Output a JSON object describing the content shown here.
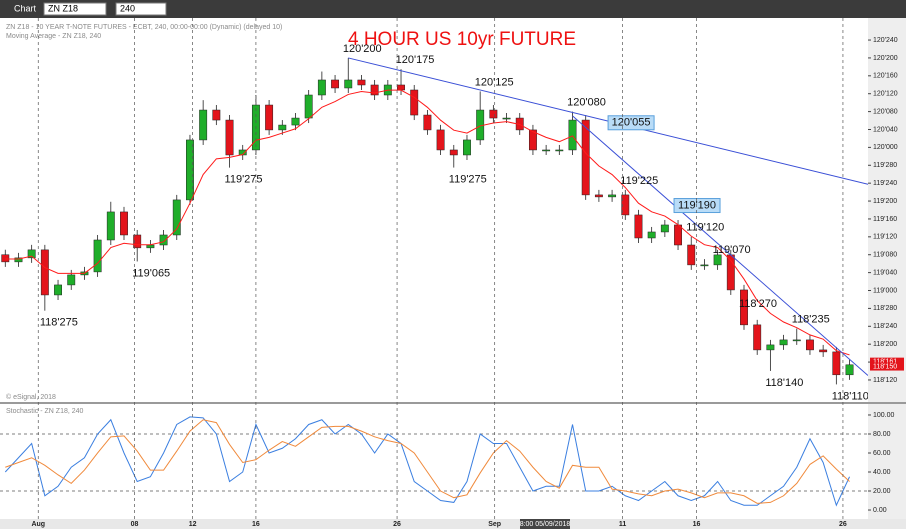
{
  "toolbar": {
    "title": "Chart",
    "symbol": "ZN Z18",
    "interval": "240"
  },
  "chart_data": [
    {
      "type": "candlestick",
      "title": "4 HOUR US 10yr FUTURE",
      "legend_lines": [
        "ZN Z18 - 10 YEAR T-NOTE FUTURES - ECBT, 240, 00:00-00:00 (Dynamic) (delayed 10)",
        "Moving Average - ZN Z18, 240"
      ],
      "watermark": "© eSignal, 2018",
      "cursor_date": "8:00 05/09/2018",
      "xlim": [
        -0.4,
        65.4
      ],
      "xticks": [
        {
          "value": 2.5,
          "label": "Aug"
        },
        {
          "value": 9.8,
          "label": "08"
        },
        {
          "value": 14.2,
          "label": "12"
        },
        {
          "value": 19.0,
          "label": "16"
        },
        {
          "value": 29.7,
          "label": "26"
        },
        {
          "value": 37.1,
          "label": "Sep"
        },
        {
          "value": 46.8,
          "label": "11"
        },
        {
          "value": 52.4,
          "label": "16"
        },
        {
          "value": 63.5,
          "label": "26"
        }
      ],
      "ylim": [
        118.235,
        120.89
      ],
      "yticks": [
        {
          "value": 118.375,
          "label": "118'120"
        },
        {
          "value": 118.5,
          "label": "118'160"
        },
        {
          "value": 118.625,
          "label": "118'200"
        },
        {
          "value": 118.75,
          "label": "118'240"
        },
        {
          "value": 118.875,
          "label": "118'280"
        },
        {
          "value": 119.0,
          "label": "119'000"
        },
        {
          "value": 119.125,
          "label": "119'040"
        },
        {
          "value": 119.25,
          "label": "119'080"
        },
        {
          "value": 119.375,
          "label": "119'120"
        },
        {
          "value": 119.5,
          "label": "119'160"
        },
        {
          "value": 119.625,
          "label": "119'200"
        },
        {
          "value": 119.75,
          "label": "119'240"
        },
        {
          "value": 119.875,
          "label": "119'280"
        },
        {
          "value": 120.0,
          "label": "120'000"
        },
        {
          "value": 120.125,
          "label": "120'040"
        },
        {
          "value": 120.25,
          "label": "120'080"
        },
        {
          "value": 120.375,
          "label": "120'120"
        },
        {
          "value": 120.5,
          "label": "120'160"
        },
        {
          "value": 120.625,
          "label": "120'200"
        },
        {
          "value": 120.75,
          "label": "120'240"
        }
      ],
      "up_color": "#1fae2a",
      "down_color": "#e3141b",
      "open": [
        119.25,
        119.2,
        119.228,
        119.284,
        118.969,
        119.039,
        119.109,
        119.13,
        119.353,
        119.549,
        119.388,
        119.298,
        119.318,
        119.388,
        119.633,
        120.052,
        120.261,
        120.191,
        119.947,
        119.982,
        120.296,
        120.122,
        120.156,
        120.205,
        120.366,
        120.471,
        120.415,
        120.471,
        120.436,
        120.366,
        120.436,
        120.401,
        120.226,
        120.122,
        119.982,
        119.947,
        120.052,
        120.261,
        120.205,
        120.205,
        120.122,
        119.982,
        119.982,
        119.982,
        120.191,
        119.668,
        119.654,
        119.668,
        119.528,
        119.367,
        119.409,
        119.458,
        119.318,
        119.179,
        119.179,
        119.249,
        119.004,
        118.76,
        118.585,
        118.62,
        118.655,
        118.655,
        118.585,
        118.571,
        118.411
      ],
      "high": [
        119.285,
        119.263,
        119.319,
        119.319,
        119.074,
        119.144,
        119.165,
        119.388,
        119.62,
        119.584,
        119.423,
        119.353,
        119.423,
        119.668,
        120.087,
        120.33,
        120.296,
        120.226,
        120.017,
        120.366,
        120.331,
        120.191,
        120.24,
        120.401,
        120.53,
        120.506,
        120.625,
        120.506,
        120.471,
        120.471,
        120.547,
        120.436,
        120.261,
        120.157,
        120.017,
        120.087,
        120.391,
        120.296,
        120.24,
        120.24,
        120.157,
        120.017,
        120.017,
        120.25,
        120.226,
        119.703,
        119.703,
        119.703,
        119.563,
        119.444,
        119.493,
        119.493,
        119.375,
        119.219,
        119.284,
        119.284,
        119.039,
        118.795,
        118.655,
        118.69,
        118.734,
        118.69,
        118.62,
        118.606,
        118.516
      ],
      "low": [
        119.165,
        119.165,
        119.193,
        118.859,
        118.934,
        119.004,
        119.074,
        119.095,
        119.318,
        119.353,
        119.203,
        119.263,
        119.283,
        119.353,
        119.598,
        120.017,
        120.156,
        119.859,
        119.912,
        119.947,
        120.087,
        120.087,
        120.121,
        120.17,
        120.331,
        120.38,
        120.38,
        120.401,
        120.331,
        120.331,
        120.366,
        120.191,
        120.087,
        119.947,
        119.859,
        119.912,
        120.017,
        120.17,
        120.17,
        120.087,
        119.947,
        119.947,
        119.947,
        119.947,
        119.633,
        119.619,
        119.619,
        119.493,
        119.332,
        119.332,
        119.374,
        119.283,
        119.144,
        119.144,
        119.144,
        118.969,
        118.725,
        118.55,
        118.438,
        118.585,
        118.62,
        118.55,
        118.536,
        118.344,
        118.376
      ],
      "close": [
        119.2,
        119.228,
        119.284,
        118.969,
        119.039,
        119.109,
        119.13,
        119.353,
        119.549,
        119.388,
        119.298,
        119.318,
        119.388,
        119.633,
        120.052,
        120.261,
        120.191,
        119.947,
        119.982,
        120.296,
        120.122,
        120.156,
        120.205,
        120.366,
        120.471,
        120.415,
        120.471,
        120.436,
        120.366,
        120.436,
        120.401,
        120.226,
        120.122,
        119.982,
        119.947,
        120.052,
        120.261,
        120.205,
        120.205,
        120.122,
        119.982,
        119.982,
        119.982,
        120.191,
        119.668,
        119.654,
        119.668,
        119.528,
        119.367,
        119.409,
        119.458,
        119.318,
        119.179,
        119.179,
        119.249,
        119.004,
        118.76,
        118.585,
        118.62,
        118.655,
        118.655,
        118.585,
        118.571,
        118.411,
        118.481
      ],
      "moving_average": {
        "color": "#ff1a1a",
        "values": [
          119.22,
          119.22,
          119.24,
          119.16,
          119.12,
          119.12,
          119.12,
          119.19,
          119.3,
          119.33,
          119.32,
          119.32,
          119.34,
          119.43,
          119.61,
          119.81,
          119.92,
          119.93,
          119.95,
          120.05,
          120.07,
          120.1,
          120.13,
          120.2,
          120.28,
          120.32,
          120.37,
          120.39,
          120.38,
          120.4,
          120.4,
          120.35,
          120.28,
          120.19,
          120.12,
          120.1,
          120.15,
          120.17,
          120.18,
          120.16,
          120.11,
          120.07,
          120.04,
          120.08,
          119.96,
          119.87,
          119.81,
          119.72,
          119.61,
          119.55,
          119.52,
          119.46,
          119.38,
          119.32,
          119.3,
          119.21,
          119.08,
          118.93,
          118.84,
          118.78,
          118.74,
          118.69,
          118.66,
          118.58,
          118.55
        ]
      },
      "annotations": [
        {
          "x": 26,
          "value": 120.625,
          "label": "120'200"
        },
        {
          "x": 30,
          "value": 120.546875,
          "label": "120'175"
        },
        {
          "x": 36,
          "value": 120.390625,
          "label": "120'125"
        },
        {
          "x": 43,
          "value": 120.25,
          "label": "120'080"
        },
        {
          "x": 47,
          "value": 119.703125,
          "label": "119'225"
        },
        {
          "x": 52,
          "value": 119.375,
          "label": "119'120"
        },
        {
          "x": 54,
          "value": 119.21875,
          "label": "119'070"
        },
        {
          "x": 56,
          "value": 118.84375,
          "label": "118'270"
        },
        {
          "x": 60,
          "value": 118.734375,
          "label": "118'235"
        },
        {
          "x": 58,
          "value": 118.4375,
          "label": "118'140"
        },
        {
          "x": 63,
          "value": 118.34375,
          "label": "118'110"
        },
        {
          "x": 3,
          "value": 118.859375,
          "label": "118'275"
        },
        {
          "x": 10,
          "value": 119.203125,
          "label": "119'065"
        },
        {
          "x": 17,
          "value": 119.859375,
          "label": "119'275"
        },
        {
          "x": 34,
          "value": 119.859375,
          "label": "119'275"
        }
      ],
      "boxed_annotations": [
        {
          "x": 46,
          "value": 120.171875,
          "label": "120'055"
        },
        {
          "x": 51,
          "value": 119.59375,
          "label": "119'190"
        }
      ],
      "trendlines": [
        {
          "x": [
            26,
            65.4
          ],
          "y": [
            120.625,
            119.742
          ],
          "color": "#3a4fd6"
        },
        {
          "x": [
            43,
            65.4
          ],
          "y": [
            120.22,
            118.406
          ],
          "color": "#3a4fd6"
        }
      ],
      "price_markers": [
        {
          "value": 118.503,
          "label": "118'161",
          "color": "#e3141b"
        },
        {
          "value": 118.46875,
          "label": "118'150",
          "color": "#e3141b"
        }
      ]
    },
    {
      "type": "line",
      "title": "Stochastic - ZN Z18, 240",
      "xlim": [
        -0.4,
        65.4
      ],
      "ylim": [
        -10.5,
        110.5
      ],
      "yticks": [
        {
          "value": 100,
          "label": "100.00"
        },
        {
          "value": 80,
          "label": "80.00"
        },
        {
          "value": 60,
          "label": "60.00"
        },
        {
          "value": 40,
          "label": "40.00"
        },
        {
          "value": 20,
          "label": "20.00"
        },
        {
          "value": 0,
          "label": "0.00"
        }
      ],
      "levels": [
        80,
        20
      ],
      "series": [
        {
          "color": "#3b7fe0",
          "values": [
            40,
            55,
            70,
            15,
            25,
            45,
            55,
            80,
            95,
            60,
            30,
            35,
            60,
            90,
            98,
            97,
            80,
            30,
            40,
            90,
            60,
            65,
            75,
            90,
            95,
            80,
            90,
            80,
            60,
            80,
            70,
            30,
            20,
            10,
            8,
            30,
            80,
            70,
            70,
            45,
            20,
            25,
            25,
            90,
            20,
            20,
            25,
            15,
            10,
            20,
            30,
            15,
            10,
            15,
            30,
            10,
            5,
            5,
            15,
            25,
            45,
            75,
            50,
            5,
            35
          ]
        },
        {
          "color": "#f08a3c",
          "values": [
            45,
            50,
            55,
            47,
            37,
            28,
            42,
            60,
            77,
            78,
            62,
            42,
            42,
            62,
            83,
            95,
            92,
            69,
            50,
            53,
            63,
            72,
            67,
            77,
            87,
            88,
            88,
            83,
            77,
            73,
            70,
            60,
            40,
            20,
            13,
            16,
            39,
            60,
            73,
            62,
            45,
            30,
            23,
            47,
            45,
            45,
            22,
            20,
            17,
            15,
            20,
            22,
            18,
            13,
            18,
            18,
            15,
            7,
            8,
            15,
            28,
            48,
            57,
            43,
            30
          ]
        }
      ]
    }
  ]
}
